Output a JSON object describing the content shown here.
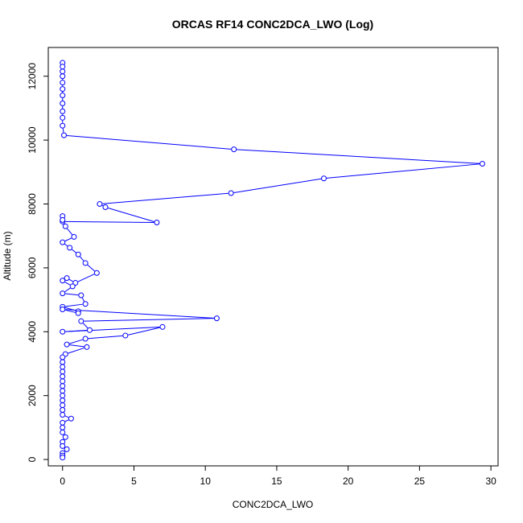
{
  "chart_data": {
    "type": "line",
    "title": "ORCAS RF14 CONC2DCA_LWO (Log)",
    "xlabel": "CONC2DCA_LWO",
    "ylabel": "Altitude (m)",
    "xlim": [
      -1,
      30.5
    ],
    "ylim": [
      -200,
      12900
    ],
    "xticks": [
      0,
      5,
      10,
      15,
      20,
      25,
      30
    ],
    "yticks": [
      0,
      2000,
      4000,
      6000,
      8000,
      10000,
      12000
    ],
    "grid": false,
    "legend": "none",
    "colors": {
      "series": "#0000ff",
      "axes": "#000000"
    },
    "series": [
      {
        "points": [
          [
            0,
            12420
          ],
          [
            0,
            12300
          ],
          [
            0,
            12150
          ],
          [
            0,
            12000
          ],
          [
            0,
            11800
          ],
          [
            0,
            11600
          ],
          [
            0,
            11400
          ],
          [
            0,
            11150
          ],
          [
            0,
            10900
          ],
          [
            0,
            10700
          ],
          [
            0,
            10450
          ],
          [
            0.1,
            10150
          ],
          [
            12.0,
            9710
          ],
          [
            29.4,
            9260
          ],
          [
            18.3,
            8800
          ],
          [
            11.8,
            8340
          ],
          [
            2.6,
            8000
          ],
          [
            3.0,
            7900
          ],
          [
            6.6,
            7420
          ],
          [
            0,
            7450
          ],
          [
            0,
            7620
          ],
          [
            0,
            7500
          ],
          [
            0.2,
            7300
          ],
          [
            0.8,
            6970
          ],
          [
            0,
            6800
          ],
          [
            0.5,
            6630
          ],
          [
            1.1,
            6420
          ],
          [
            1.6,
            6150
          ],
          [
            2.4,
            5840
          ],
          [
            0.9,
            5530
          ],
          [
            0.3,
            5680
          ],
          [
            0,
            5600
          ],
          [
            0.7,
            5420
          ],
          [
            0,
            5200
          ],
          [
            1.3,
            5140
          ],
          [
            1.6,
            4870
          ],
          [
            0,
            4780
          ],
          [
            1.1,
            4640
          ],
          [
            1.1,
            4580
          ],
          [
            0,
            4700
          ],
          [
            10.8,
            4420
          ],
          [
            1.3,
            4330
          ],
          [
            1.9,
            4050
          ],
          [
            0,
            4000
          ],
          [
            7.0,
            4150
          ],
          [
            4.4,
            3880
          ],
          [
            1.6,
            3780
          ],
          [
            0.3,
            3600
          ],
          [
            1.7,
            3520
          ],
          [
            0.2,
            3300
          ],
          [
            0,
            3200
          ],
          [
            0,
            3050
          ],
          [
            0,
            2900
          ],
          [
            0,
            2750
          ],
          [
            0,
            2600
          ],
          [
            0,
            2450
          ],
          [
            0,
            2300
          ],
          [
            0,
            2150
          ],
          [
            0,
            2000
          ],
          [
            0,
            1850
          ],
          [
            0,
            1700
          ],
          [
            0,
            1550
          ],
          [
            0,
            1400
          ],
          [
            0.6,
            1280
          ],
          [
            0,
            1150
          ],
          [
            0,
            1000
          ],
          [
            0,
            850
          ],
          [
            0.2,
            700
          ],
          [
            0,
            550
          ],
          [
            0,
            420
          ],
          [
            0.3,
            320
          ],
          [
            0,
            200
          ],
          [
            0,
            120
          ],
          [
            0,
            60
          ]
        ]
      }
    ]
  }
}
